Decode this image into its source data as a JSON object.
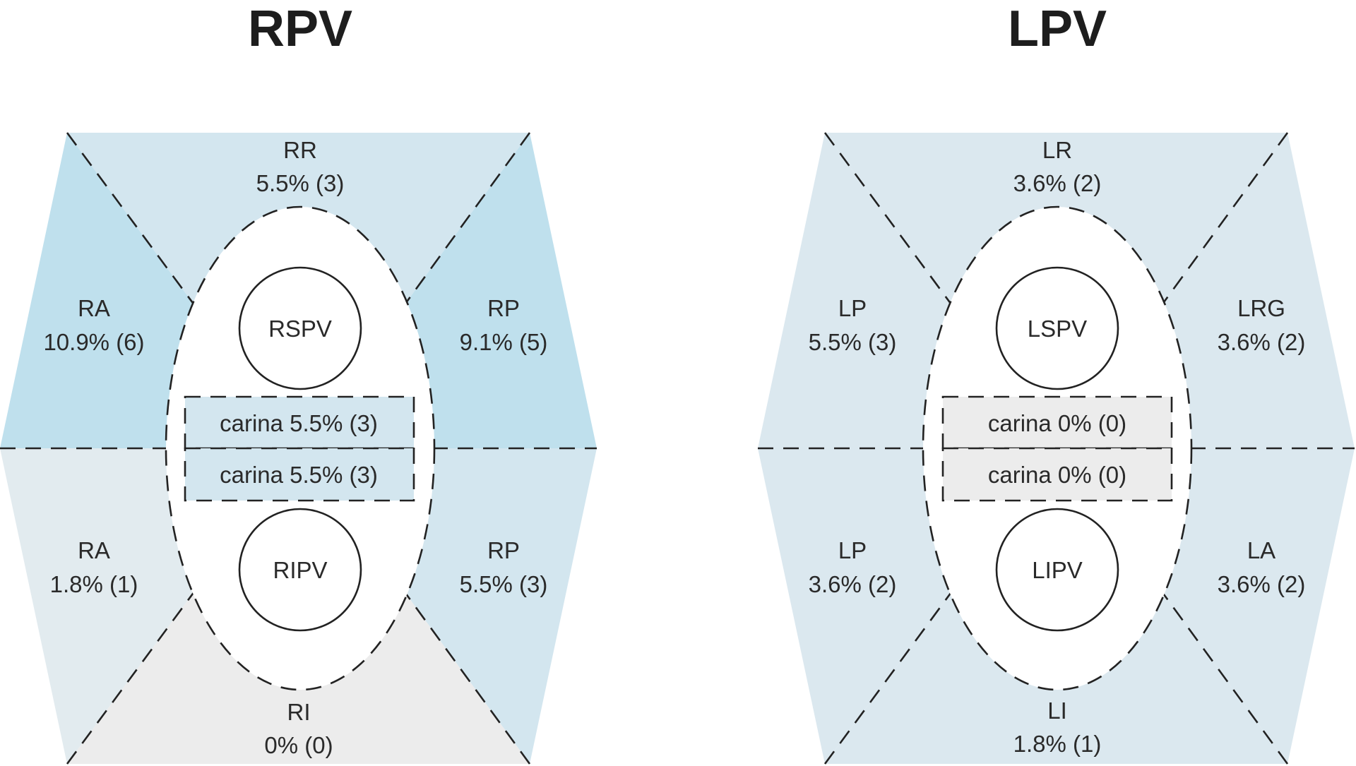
{
  "colors": {
    "dark": "#bfe0ed",
    "medium": "#d3e6ef",
    "pale": "#e2ebef",
    "gray": "#ececec",
    "lpv_fill": "#dbe8ef"
  },
  "rpv": {
    "title": "RPV",
    "regions": {
      "rr": {
        "name": "RR",
        "value": "5.5% (3)"
      },
      "ra_upper": {
        "name": "RA",
        "value": "10.9% (6)"
      },
      "rp_upper": {
        "name": "RP",
        "value": "9.1% (5)"
      },
      "ra_lower": {
        "name": "RA",
        "value": "1.8% (1)"
      },
      "rp_lower": {
        "name": "RP",
        "value": "5.5% (3)"
      },
      "ri": {
        "name": "RI",
        "value": "0% (0)"
      }
    },
    "carina_upper": "carina 5.5% (3)",
    "carina_lower": "carina 5.5% (3)",
    "superior_vein": "RSPV",
    "inferior_vein": "RIPV"
  },
  "lpv": {
    "title": "LPV",
    "regions": {
      "lr": {
        "name": "LR",
        "value": "3.6% (2)"
      },
      "lp_upper": {
        "name": "LP",
        "value": "5.5% (3)"
      },
      "lrg": {
        "name": "LRG",
        "value": "3.6% (2)"
      },
      "lp_lower": {
        "name": "LP",
        "value": "3.6% (2)"
      },
      "la": {
        "name": "LA",
        "value": "3.6% (2)"
      },
      "li": {
        "name": "LI",
        "value": "1.8% (1)"
      }
    },
    "carina_upper": "carina 0% (0)",
    "carina_lower": "carina 0% (0)",
    "superior_vein": "LSPV",
    "inferior_vein": "LIPV"
  }
}
